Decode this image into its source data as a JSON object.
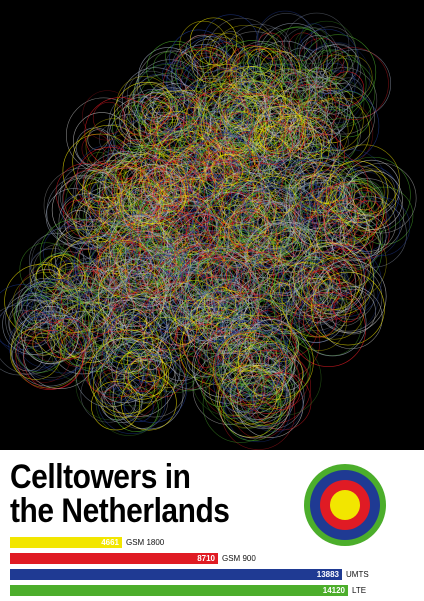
{
  "title": {
    "line1": "Celltowers in",
    "line2": "the Netherlands"
  },
  "legend": [
    {
      "value": "4661",
      "label": "GSM 1800",
      "color": "#f2e600",
      "count": 4661
    },
    {
      "value": "8710",
      "label": "GSM 900",
      "color": "#e01b24",
      "count": 8710
    },
    {
      "value": "13883",
      "label": "UMTS",
      "color": "#1f3a93",
      "count": 13883
    },
    {
      "value": "14120",
      "label": "LTE",
      "color": "#4cae2b",
      "count": 14120
    }
  ],
  "target_rings": [
    "#4cae2b",
    "#1f3a93",
    "#e01b24",
    "#f2e600"
  ]
}
